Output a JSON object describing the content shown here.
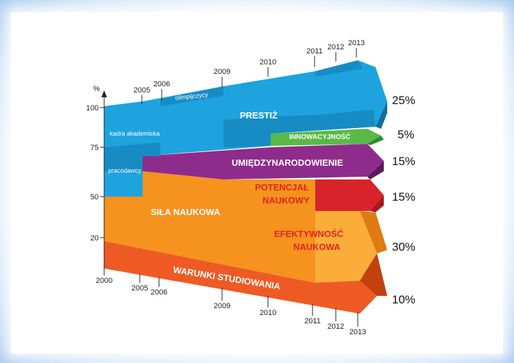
{
  "chart_data": {
    "type": "area",
    "y_unit_label": "%",
    "y_ticks": [
      100,
      75,
      50,
      20
    ],
    "top_years": [
      "2005",
      "2006",
      "2009",
      "2010",
      "2011",
      "2012",
      "2013"
    ],
    "bottom_years": [
      "2000",
      "2005",
      "2006",
      "2009",
      "2010",
      "2011",
      "2012",
      "2013"
    ],
    "bands": [
      {
        "name": "PRESTIŻ",
        "percent": "25%",
        "color": "#1ea3df"
      },
      {
        "name": "INNOWACYJNOŚĆ",
        "percent": "5%",
        "color": "#59b947"
      },
      {
        "name": "UMIĘDZYNARODOWIENIE",
        "percent": "15%",
        "color": "#8e2c8c"
      },
      {
        "name_lines": [
          "POTENCJAŁ",
          "NAUKOWY"
        ],
        "percent": "15%",
        "color": "#d9232a"
      },
      {
        "name_lines": [
          "EFEKTYWNOŚĆ",
          "NAUKOWA"
        ],
        "percent": "30%",
        "color": "#f6921e"
      },
      {
        "name": "WARUNKI STUDIOWANIA",
        "percent": "10%",
        "color": "#ee5a24"
      }
    ],
    "sub_labels": {
      "sila_naukowa": "SIŁA NAUKOWA",
      "olimpijczycy": "olimpijczycy",
      "kadra": "kadra akademicka",
      "pracodawcy": "pracodawcy"
    }
  }
}
